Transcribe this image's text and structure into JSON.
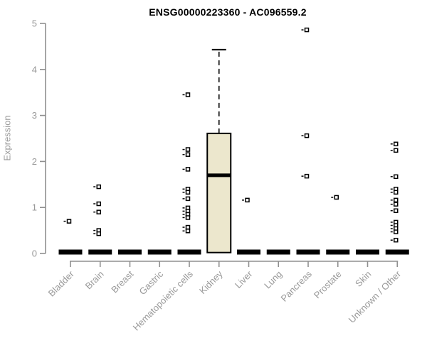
{
  "title": "ENSG00000223360 - AC096559.2",
  "y_axis": {
    "label": "Expression"
  },
  "chart_data": {
    "type": "boxplot",
    "title": "ENSG00000223360 - AC096559.2",
    "xlabel": "",
    "ylabel": "Expression",
    "ylim": [
      0,
      5
    ],
    "yticks": [
      0,
      1,
      2,
      3,
      4,
      5
    ],
    "grid": false,
    "legend": "none",
    "categories": [
      "Bladder",
      "Brain",
      "Breast",
      "Gastric",
      "Hematopoietic cells",
      "Kidney",
      "Liver",
      "Lung",
      "Pancreas",
      "Prostate",
      "Skin",
      "Unknown / Other"
    ],
    "boxes": [
      {
        "category": "Bladder",
        "q1": 0,
        "median": 0,
        "q3": 0,
        "whisker_low": 0,
        "whisker_high": 0,
        "outliers": [
          0.7
        ]
      },
      {
        "category": "Brain",
        "q1": 0,
        "median": 0,
        "q3": 0,
        "whisker_low": 0,
        "whisker_high": 0,
        "outliers": [
          1.45,
          1.08,
          0.9,
          0.5,
          0.43
        ]
      },
      {
        "category": "Breast",
        "q1": 0,
        "median": 0,
        "q3": 0,
        "whisker_low": 0,
        "whisker_high": 0,
        "outliers": []
      },
      {
        "category": "Gastric",
        "q1": 0,
        "median": 0,
        "q3": 0,
        "whisker_low": 0,
        "whisker_high": 0,
        "outliers": []
      },
      {
        "category": "Hematopoietic cells",
        "q1": 0,
        "median": 0,
        "q3": 0,
        "whisker_low": 0,
        "whisker_high": 0,
        "outliers": [
          3.45,
          2.26,
          2.15,
          1.83,
          1.4,
          1.33,
          1.19,
          0.99,
          0.92,
          0.85,
          0.78,
          0.57,
          0.49
        ]
      },
      {
        "category": "Kidney",
        "q1": 0.02,
        "median": 1.7,
        "q3": 2.61,
        "whisker_low": 0,
        "whisker_high": 4.43,
        "outliers": []
      },
      {
        "category": "Liver",
        "q1": 0,
        "median": 0,
        "q3": 0,
        "whisker_low": 0,
        "whisker_high": 0,
        "outliers": [
          1.16
        ]
      },
      {
        "category": "Lung",
        "q1": 0,
        "median": 0,
        "q3": 0,
        "whisker_low": 0,
        "whisker_high": 0,
        "outliers": []
      },
      {
        "category": "Pancreas",
        "q1": 0,
        "median": 0,
        "q3": 0,
        "whisker_low": 0,
        "whisker_high": 0,
        "outliers": [
          4.86,
          2.56,
          1.68
        ]
      },
      {
        "category": "Prostate",
        "q1": 0,
        "median": 0,
        "q3": 0,
        "whisker_low": 0,
        "whisker_high": 0,
        "outliers": [
          1.22
        ]
      },
      {
        "category": "Skin",
        "q1": 0,
        "median": 0,
        "q3": 0,
        "whisker_low": 0,
        "whisker_high": 0,
        "outliers": []
      },
      {
        "category": "Unknown / Other",
        "q1": 0,
        "median": 0,
        "q3": 0,
        "whisker_low": 0,
        "whisker_high": 0,
        "outliers": [
          2.38,
          2.24,
          1.67,
          1.4,
          1.33,
          1.16,
          1.07,
          0.93,
          0.68,
          0.61,
          0.54,
          0.47,
          0.29
        ]
      }
    ],
    "colors": {
      "box_fill": "#ECE7CD",
      "box_stroke": "#000000",
      "median": "#000000",
      "whisker": "#000000",
      "outlier_stroke": "#000000",
      "outlier_fill": "#ffffff",
      "axis": "#8f8f8f",
      "tick_text": "#999999",
      "title_text": "#000000"
    }
  }
}
